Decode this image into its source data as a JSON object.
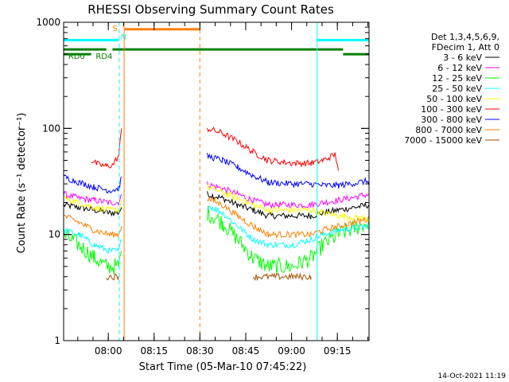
{
  "chart_data": {
    "type": "line",
    "title": "RHESSI Observing Summary Count Rates",
    "xlabel": "Start Time (05-Mar-10 07:45:22)",
    "ylabel": "Count Rate (s⁻¹ detector⁻¹)",
    "yscale": "log",
    "ylim": [
      1,
      1000
    ],
    "xlim_minutes": [
      0,
      100
    ],
    "y_ticks": [
      {
        "value": 1,
        "label": "1"
      },
      {
        "value": 10,
        "label": "10"
      },
      {
        "value": 100,
        "label": "100"
      },
      {
        "value": 1000,
        "label": "1000"
      }
    ],
    "x_ticks": [
      {
        "t": 14.63,
        "label": "08:00"
      },
      {
        "t": 29.63,
        "label": "08:15"
      },
      {
        "t": 44.63,
        "label": "08:30"
      },
      {
        "t": 59.63,
        "label": "08:45"
      },
      {
        "t": 74.63,
        "label": "09:00"
      },
      {
        "t": 89.63,
        "label": "09:15"
      }
    ],
    "legend": {
      "header": [
        "Det 1,3,4,5,6,9,",
        "FDecim 1, Att 0"
      ],
      "placement": "right"
    },
    "series": [
      {
        "name": "3 - 6 keV",
        "color": "#000000",
        "seg1": [
          {
            "t": 0,
            "v": 19
          },
          {
            "t": 5,
            "v": 18
          },
          {
            "t": 10,
            "v": 17
          },
          {
            "t": 15,
            "v": 16
          },
          {
            "t": 18,
            "v": 16
          },
          {
            "t": 19,
            "v": 18
          }
        ],
        "seg2": [
          {
            "t": 47,
            "v": 24
          },
          {
            "t": 52,
            "v": 22
          },
          {
            "t": 57,
            "v": 19
          },
          {
            "t": 62,
            "v": 17
          },
          {
            "t": 67,
            "v": 15
          },
          {
            "t": 75,
            "v": 15
          },
          {
            "t": 81,
            "v": 15
          },
          {
            "t": 85,
            "v": 16
          },
          {
            "t": 90,
            "v": 17
          },
          {
            "t": 100,
            "v": 19
          }
        ]
      },
      {
        "name": "6 - 12 keV",
        "color": "#ff00ff",
        "seg1": [
          {
            "t": 0,
            "v": 24
          },
          {
            "t": 5,
            "v": 22
          },
          {
            "t": 10,
            "v": 21
          },
          {
            "t": 15,
            "v": 20
          },
          {
            "t": 18,
            "v": 20
          },
          {
            "t": 19,
            "v": 24
          }
        ],
        "seg2": [
          {
            "t": 47,
            "v": 30
          },
          {
            "t": 52,
            "v": 27
          },
          {
            "t": 57,
            "v": 24
          },
          {
            "t": 62,
            "v": 21
          },
          {
            "t": 67,
            "v": 19
          },
          {
            "t": 75,
            "v": 19
          },
          {
            "t": 81,
            "v": 19
          },
          {
            "t": 85,
            "v": 20
          },
          {
            "t": 90,
            "v": 21
          },
          {
            "t": 100,
            "v": 24
          }
        ]
      },
      {
        "name": "12 - 25 keV",
        "color": "#00ff00",
        "seg1": [
          {
            "t": 0,
            "v": 10
          },
          {
            "t": 5,
            "v": 8
          },
          {
            "t": 10,
            "v": 6
          },
          {
            "t": 14,
            "v": 5
          },
          {
            "t": 18,
            "v": 5
          },
          {
            "t": 19,
            "v": 7
          }
        ],
        "seg2": [
          {
            "t": 47,
            "v": 16
          },
          {
            "t": 52,
            "v": 13
          },
          {
            "t": 57,
            "v": 9
          },
          {
            "t": 62,
            "v": 6
          },
          {
            "t": 67,
            "v": 5
          },
          {
            "t": 75,
            "v": 5
          },
          {
            "t": 81,
            "v": 6
          },
          {
            "t": 85,
            "v": 8
          },
          {
            "t": 90,
            "v": 10
          },
          {
            "t": 100,
            "v": 13
          }
        ]
      },
      {
        "name": "25 - 50 keV",
        "color": "#00ffff",
        "seg1": [
          {
            "t": 0,
            "v": 11
          },
          {
            "t": 5,
            "v": 10
          },
          {
            "t": 10,
            "v": 8
          },
          {
            "t": 15,
            "v": 7
          },
          {
            "t": 18,
            "v": 7
          },
          {
            "t": 19,
            "v": 9
          }
        ],
        "seg2": [
          {
            "t": 47,
            "v": 19
          },
          {
            "t": 52,
            "v": 16
          },
          {
            "t": 57,
            "v": 12
          },
          {
            "t": 62,
            "v": 9
          },
          {
            "t": 67,
            "v": 8
          },
          {
            "t": 75,
            "v": 8
          },
          {
            "t": 81,
            "v": 9
          },
          {
            "t": 85,
            "v": 10
          },
          {
            "t": 90,
            "v": 11
          },
          {
            "t": 100,
            "v": 12
          }
        ]
      },
      {
        "name": "50 - 100 keV",
        "color": "#ffff00",
        "seg1": [
          {
            "t": 0,
            "v": 22
          },
          {
            "t": 5,
            "v": 20
          },
          {
            "t": 10,
            "v": 18
          },
          {
            "t": 15,
            "v": 17
          },
          {
            "t": 18,
            "v": 17
          },
          {
            "t": 19,
            "v": 21
          }
        ],
        "seg2": [
          {
            "t": 47,
            "v": 28
          },
          {
            "t": 52,
            "v": 25
          },
          {
            "t": 57,
            "v": 22
          },
          {
            "t": 62,
            "v": 19
          },
          {
            "t": 67,
            "v": 17
          },
          {
            "t": 75,
            "v": 17
          },
          {
            "t": 81,
            "v": 17
          },
          {
            "t": 85,
            "v": 16
          },
          {
            "t": 90,
            "v": 15
          },
          {
            "t": 100,
            "v": 14
          }
        ]
      },
      {
        "name": "100 - 300 keV",
        "color": "#ff0000",
        "seg1": [
          {
            "t": 9,
            "v": 50
          },
          {
            "t": 11,
            "v": 46
          },
          {
            "t": 14,
            "v": 44
          },
          {
            "t": 16,
            "v": 45
          },
          {
            "t": 18,
            "v": 55
          },
          {
            "t": 19,
            "v": 100
          }
        ],
        "seg2": [
          {
            "t": 47,
            "v": 100
          },
          {
            "t": 52,
            "v": 90
          },
          {
            "t": 57,
            "v": 75
          },
          {
            "t": 62,
            "v": 60
          },
          {
            "t": 67,
            "v": 50
          },
          {
            "t": 75,
            "v": 47
          },
          {
            "t": 81,
            "v": 47
          },
          {
            "t": 85,
            "v": 50
          },
          {
            "t": 89,
            "v": 57
          },
          {
            "t": 90,
            "v": 40
          }
        ]
      },
      {
        "name": "300 - 800 keV",
        "color": "#0000ff",
        "seg1": [
          {
            "t": 0,
            "v": 35
          },
          {
            "t": 5,
            "v": 31
          },
          {
            "t": 10,
            "v": 28
          },
          {
            "t": 15,
            "v": 26
          },
          {
            "t": 18,
            "v": 27
          },
          {
            "t": 19,
            "v": 35
          }
        ],
        "seg2": [
          {
            "t": 47,
            "v": 55
          },
          {
            "t": 52,
            "v": 50
          },
          {
            "t": 57,
            "v": 43
          },
          {
            "t": 62,
            "v": 36
          },
          {
            "t": 67,
            "v": 31
          },
          {
            "t": 75,
            "v": 30
          },
          {
            "t": 81,
            "v": 30
          },
          {
            "t": 85,
            "v": 29
          },
          {
            "t": 90,
            "v": 29
          },
          {
            "t": 100,
            "v": 32
          }
        ]
      },
      {
        "name": "800 - 7000 keV",
        "color": "#ff8000",
        "seg1": [
          {
            "t": 0,
            "v": 15
          },
          {
            "t": 5,
            "v": 13
          },
          {
            "t": 10,
            "v": 11
          },
          {
            "t": 15,
            "v": 10
          },
          {
            "t": 18,
            "v": 10
          },
          {
            "t": 19,
            "v": 12
          }
        ],
        "seg2": [
          {
            "t": 47,
            "v": 22
          },
          {
            "t": 52,
            "v": 19
          },
          {
            "t": 57,
            "v": 15
          },
          {
            "t": 62,
            "v": 12
          },
          {
            "t": 67,
            "v": 10
          },
          {
            "t": 75,
            "v": 10
          },
          {
            "t": 81,
            "v": 10
          },
          {
            "t": 85,
            "v": 11
          },
          {
            "t": 90,
            "v": 12
          },
          {
            "t": 100,
            "v": 14
          }
        ]
      },
      {
        "name": "7000 - 15000 keV",
        "color": "#a05000",
        "seg1": [
          {
            "t": 14,
            "v": 4
          },
          {
            "t": 18,
            "v": 4
          }
        ],
        "seg2": [
          {
            "t": 62,
            "v": 4
          },
          {
            "t": 75,
            "v": 4
          },
          {
            "t": 81,
            "v": 4
          }
        ]
      }
    ],
    "annotations": {
      "segment_flags": [
        {
          "label": "RD0",
          "color": "#008000",
          "t_start": 0,
          "t_end": 14,
          "value": 555,
          "label_t": 1.5
        },
        {
          "label": "RD4",
          "color": "#008000",
          "t_start": 16,
          "t_end": 91.5,
          "value": 555,
          "label_t": 10.5
        },
        {
          "label": "",
          "color": "#008000",
          "t_start": 0,
          "t_end": 9,
          "value": 500
        },
        {
          "label": "",
          "color": "#008000",
          "t_start": 91.5,
          "t_end": 100,
          "value": 500
        },
        {
          "label": "",
          "color": "#00ffff",
          "t_start": 0,
          "t_end": 18,
          "value": 680
        },
        {
          "label": "",
          "color": "#00ffff",
          "t_start": 83,
          "t_end": 100,
          "value": 680
        },
        {
          "label": "",
          "color": "#ff8000",
          "t_start": 20,
          "t_end": 44.5,
          "value": 860
        }
      ],
      "markers": [
        {
          "label": "S",
          "color": "#ff8000",
          "t": 16.8,
          "value": 830
        },
        {
          "label": "N",
          "color": "#00ffff",
          "t": 19.6,
          "value": 690
        }
      ],
      "vertical_lines": [
        {
          "t": 0,
          "color": "#00ffff",
          "dashed": false
        },
        {
          "t": 18.2,
          "color": "#00ffff",
          "dashed": true
        },
        {
          "t": 19.8,
          "color": "#ff8000",
          "dashed": false
        },
        {
          "t": 44.6,
          "color": "#ff8000",
          "dashed": true
        },
        {
          "t": 83.0,
          "color": "#00ffff",
          "dashed": false
        },
        {
          "t": 100,
          "color": "#00ffff",
          "dashed": true
        }
      ]
    }
  },
  "footer": {
    "timestamp": "14-Oct-2021 11:19"
  }
}
